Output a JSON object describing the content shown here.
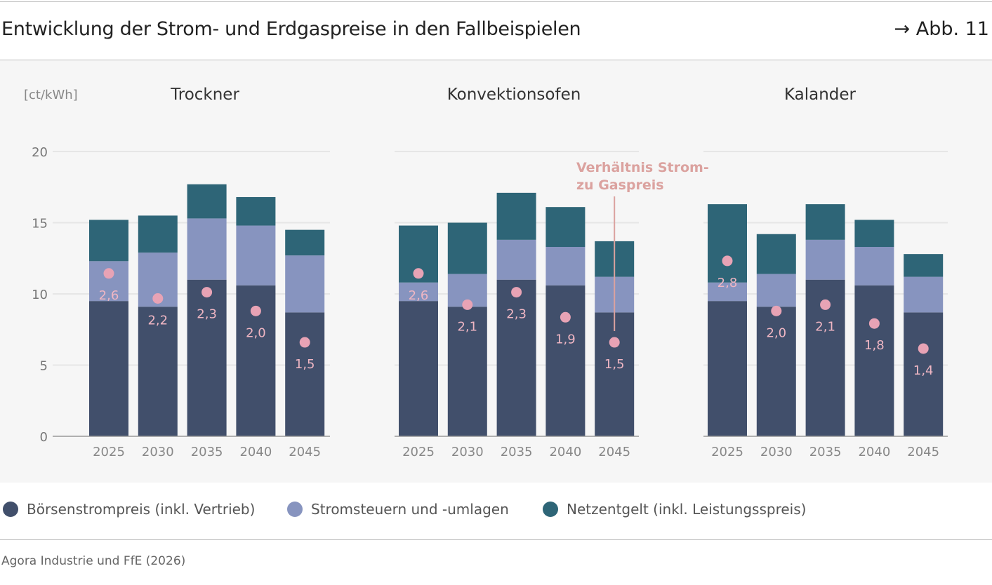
{
  "header": {
    "title": "Entwicklung der Strom- und Erdgaspreise in den Fallbeispielen",
    "figure_ref": "→ Abb. 11"
  },
  "footer": {
    "source": "Agora Industrie und FfE (2026)"
  },
  "colors": {
    "boersen": "#414f6b",
    "steuern": "#8794bf",
    "netz": "#2e6577",
    "ratio": "#e8a3b5",
    "annotation": "#dba29f"
  },
  "chart_data": [
    {
      "type": "bar",
      "stacked": true,
      "title": "Trockner",
      "ylabel": "[ct/kWh]",
      "ylim": [
        0,
        20
      ],
      "yticks": [
        0,
        5,
        10,
        15,
        20
      ],
      "grid": true,
      "categories": [
        "2025",
        "2030",
        "2035",
        "2040",
        "2045"
      ],
      "series": [
        {
          "name": "Börsenstrompreis (inkl. Vertrieb)",
          "values": [
            9.5,
            9.1,
            11.0,
            10.6,
            8.7
          ]
        },
        {
          "name": "Stromsteuern und -umlagen",
          "values": [
            2.8,
            3.8,
            4.3,
            4.2,
            4.0
          ]
        },
        {
          "name": "Netzentgelt (inkl. Leistungsspreis)",
          "values": [
            2.9,
            2.6,
            2.4,
            2.0,
            1.8
          ]
        }
      ],
      "ratio": {
        "values": [
          2.6,
          2.2,
          2.3,
          2.0,
          1.5
        ],
        "labels": [
          "2,6",
          "2,2",
          "2,3",
          "2,0",
          "1,5"
        ]
      }
    },
    {
      "type": "bar",
      "stacked": true,
      "title": "Konvektionsofen",
      "ylim": [
        0,
        20
      ],
      "grid": true,
      "categories": [
        "2025",
        "2030",
        "2035",
        "2040",
        "2045"
      ],
      "series": [
        {
          "name": "Börsenstrompreis (inkl. Vertrieb)",
          "values": [
            9.5,
            9.1,
            11.0,
            10.6,
            8.7
          ]
        },
        {
          "name": "Stromsteuern und -umlagen",
          "values": [
            1.3,
            2.3,
            2.8,
            2.7,
            2.5
          ]
        },
        {
          "name": "Netzentgelt (inkl. Leistungsspreis)",
          "values": [
            4.0,
            3.6,
            3.3,
            2.8,
            2.5
          ]
        }
      ],
      "ratio": {
        "values": [
          2.6,
          2.1,
          2.3,
          1.9,
          1.5
        ],
        "labels": [
          "2,6",
          "2,1",
          "2,3",
          "1,9",
          "1,5"
        ]
      },
      "annotation": [
        "Verhältnis Strom-",
        "zu Gaspreis"
      ]
    },
    {
      "type": "bar",
      "stacked": true,
      "title": "Kalander",
      "ylim": [
        0,
        20
      ],
      "grid": true,
      "categories": [
        "2025",
        "2030",
        "2035",
        "2040",
        "2045"
      ],
      "series": [
        {
          "name": "Börsenstrompreis (inkl. Vertrieb)",
          "values": [
            9.5,
            9.1,
            11.0,
            10.6,
            8.7
          ]
        },
        {
          "name": "Stromsteuern und -umlagen",
          "values": [
            1.3,
            2.3,
            2.8,
            2.7,
            2.5
          ]
        },
        {
          "name": "Netzentgelt (inkl. Leistungsspreis)",
          "values": [
            5.5,
            2.8,
            2.5,
            1.9,
            1.6
          ]
        }
      ],
      "ratio": {
        "values": [
          2.8,
          2.0,
          2.1,
          1.8,
          1.4
        ],
        "labels": [
          "2,8",
          "2,0",
          "2,1",
          "1,8",
          "1,4"
        ]
      }
    }
  ],
  "legend": [
    "Börsenstrompreis (inkl. Vertrieb)",
    "Stromsteuern und -umlagen",
    "Netzentgelt (inkl. Leistungsspreis)"
  ]
}
